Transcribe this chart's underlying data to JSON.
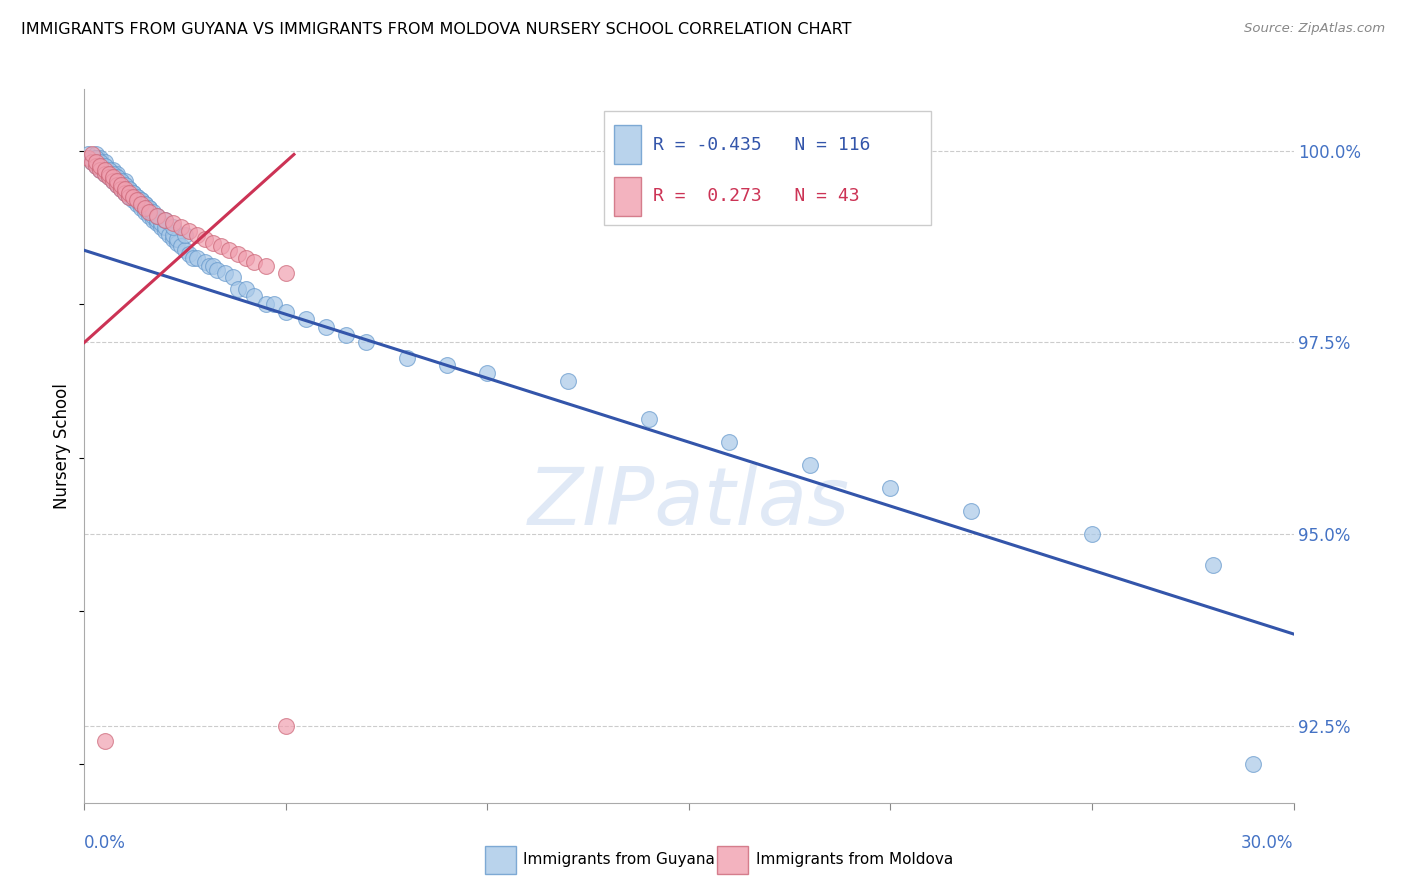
{
  "title": "IMMIGRANTS FROM GUYANA VS IMMIGRANTS FROM MOLDOVA NURSERY SCHOOL CORRELATION CHART",
  "source": "Source: ZipAtlas.com",
  "ylabel": "Nursery School",
  "ytick_labels": [
    "92.5%",
    "95.0%",
    "97.5%",
    "100.0%"
  ],
  "ytick_values": [
    0.925,
    0.95,
    0.975,
    1.0
  ],
  "xlim": [
    0.0,
    0.3
  ],
  "ylim": [
    0.915,
    1.008
  ],
  "legend_blue_r": "-0.435",
  "legend_blue_n": "116",
  "legend_pink_r": "0.273",
  "legend_pink_n": "43",
  "legend_label_blue": "Immigrants from Guyana",
  "legend_label_pink": "Immigrants from Moldova",
  "blue_color": "#a8c8e8",
  "blue_edge_color": "#6699cc",
  "pink_color": "#f0a0b0",
  "pink_edge_color": "#cc6677",
  "blue_line_color": "#3355aa",
  "pink_line_color": "#cc3355",
  "watermark": "ZIPatlas",
  "blue_scatter_x": [
    0.001,
    0.002,
    0.002,
    0.003,
    0.003,
    0.003,
    0.003,
    0.004,
    0.004,
    0.004,
    0.004,
    0.005,
    0.005,
    0.005,
    0.005,
    0.006,
    0.006,
    0.006,
    0.007,
    0.007,
    0.007,
    0.007,
    0.008,
    0.008,
    0.008,
    0.008,
    0.009,
    0.009,
    0.009,
    0.01,
    0.01,
    0.01,
    0.01,
    0.011,
    0.011,
    0.011,
    0.012,
    0.012,
    0.012,
    0.013,
    0.013,
    0.013,
    0.014,
    0.014,
    0.014,
    0.015,
    0.015,
    0.015,
    0.016,
    0.016,
    0.016,
    0.017,
    0.017,
    0.018,
    0.018,
    0.019,
    0.019,
    0.02,
    0.02,
    0.021,
    0.022,
    0.022,
    0.023,
    0.023,
    0.024,
    0.025,
    0.026,
    0.027,
    0.028,
    0.03,
    0.031,
    0.032,
    0.033,
    0.035,
    0.037,
    0.038,
    0.04,
    0.042,
    0.045,
    0.047,
    0.05,
    0.055,
    0.06,
    0.065,
    0.07,
    0.08,
    0.09,
    0.1,
    0.12,
    0.14,
    0.16,
    0.18,
    0.2,
    0.22,
    0.25,
    0.28,
    0.29,
    0.003,
    0.004,
    0.005,
    0.006,
    0.007,
    0.008,
    0.009,
    0.01,
    0.011,
    0.012,
    0.013,
    0.014,
    0.015,
    0.016,
    0.017,
    0.018,
    0.02,
    0.022,
    0.025
  ],
  "blue_scatter_y": [
    0.9995,
    0.999,
    0.9985,
    0.9995,
    0.998,
    0.9985,
    0.999,
    0.9975,
    0.998,
    0.9985,
    0.999,
    0.997,
    0.9975,
    0.998,
    0.9985,
    0.9965,
    0.997,
    0.9975,
    0.996,
    0.9965,
    0.997,
    0.9975,
    0.9955,
    0.996,
    0.9965,
    0.997,
    0.995,
    0.9955,
    0.996,
    0.9945,
    0.995,
    0.9955,
    0.996,
    0.994,
    0.9945,
    0.995,
    0.9935,
    0.994,
    0.9945,
    0.993,
    0.9935,
    0.994,
    0.9925,
    0.993,
    0.9935,
    0.992,
    0.9925,
    0.993,
    0.9915,
    0.992,
    0.9925,
    0.991,
    0.9915,
    0.9905,
    0.991,
    0.99,
    0.9905,
    0.9895,
    0.99,
    0.989,
    0.9885,
    0.989,
    0.988,
    0.9885,
    0.9875,
    0.987,
    0.9865,
    0.986,
    0.986,
    0.9855,
    0.985,
    0.985,
    0.9845,
    0.984,
    0.9835,
    0.982,
    0.982,
    0.981,
    0.98,
    0.98,
    0.979,
    0.978,
    0.977,
    0.976,
    0.975,
    0.973,
    0.972,
    0.971,
    0.97,
    0.965,
    0.962,
    0.959,
    0.956,
    0.953,
    0.95,
    0.946,
    0.92,
    0.999,
    0.9985,
    0.998,
    0.9975,
    0.997,
    0.9965,
    0.996,
    0.9955,
    0.995,
    0.9945,
    0.994,
    0.9935,
    0.993,
    0.9925,
    0.992,
    0.9915,
    0.991,
    0.99,
    0.989
  ],
  "pink_scatter_x": [
    0.001,
    0.002,
    0.002,
    0.003,
    0.003,
    0.004,
    0.004,
    0.005,
    0.005,
    0.006,
    0.006,
    0.007,
    0.007,
    0.008,
    0.008,
    0.009,
    0.009,
    0.01,
    0.01,
    0.011,
    0.011,
    0.012,
    0.013,
    0.014,
    0.015,
    0.016,
    0.018,
    0.02,
    0.022,
    0.024,
    0.026,
    0.028,
    0.03,
    0.032,
    0.034,
    0.036,
    0.038,
    0.04,
    0.042,
    0.045,
    0.05,
    0.05,
    0.005
  ],
  "pink_scatter_y": [
    0.999,
    0.9985,
    0.9995,
    0.998,
    0.9985,
    0.9975,
    0.998,
    0.997,
    0.9975,
    0.9965,
    0.997,
    0.996,
    0.9965,
    0.9955,
    0.996,
    0.995,
    0.9955,
    0.9945,
    0.995,
    0.994,
    0.9945,
    0.994,
    0.9935,
    0.993,
    0.9925,
    0.992,
    0.9915,
    0.991,
    0.9905,
    0.99,
    0.9895,
    0.989,
    0.9885,
    0.988,
    0.9875,
    0.987,
    0.9865,
    0.986,
    0.9855,
    0.985,
    0.984,
    0.925,
    0.923
  ],
  "blue_line_x": [
    0.0,
    0.3
  ],
  "blue_line_y": [
    0.987,
    0.937
  ],
  "pink_line_x": [
    0.0,
    0.052
  ],
  "pink_line_y": [
    0.975,
    0.9995
  ]
}
